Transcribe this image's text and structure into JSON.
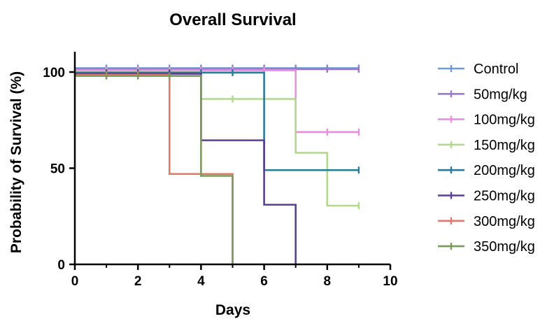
{
  "chart_data": {
    "type": "line",
    "subtype": "kaplan-meier",
    "title": "Overall Survival",
    "xlabel": "Days",
    "ylabel": "Probability of Survival (%)",
    "xlim": [
      0,
      10
    ],
    "ylim": [
      0,
      100
    ],
    "xticks": [
      0,
      2,
      4,
      6,
      8,
      10
    ],
    "yticks": [
      0,
      50,
      100
    ],
    "grid": false,
    "legend_position": "right",
    "censor_marks": true,
    "series": [
      {
        "name": "Control",
        "color": "#6e9bd8",
        "steps": [
          [
            0,
            100
          ],
          [
            9,
            100
          ]
        ],
        "censored": [
          [
            1,
            100
          ],
          [
            2,
            100
          ],
          [
            3,
            100
          ],
          [
            4,
            100
          ],
          [
            5,
            100
          ],
          [
            6,
            100
          ],
          [
            7,
            100
          ],
          [
            8,
            100
          ],
          [
            9,
            100
          ]
        ]
      },
      {
        "name": "50mg/kg",
        "color": "#9b79c8",
        "steps": [
          [
            0,
            100
          ],
          [
            9,
            100
          ]
        ],
        "censored": [
          [
            1,
            100
          ],
          [
            2,
            100
          ],
          [
            3,
            100
          ],
          [
            4,
            100
          ],
          [
            5,
            100
          ],
          [
            6,
            100
          ],
          [
            7,
            100
          ],
          [
            8,
            100
          ],
          [
            9,
            100
          ]
        ]
      },
      {
        "name": "100mg/kg",
        "color": "#e98fe0",
        "steps": [
          [
            0,
            100
          ],
          [
            7,
            100
          ],
          [
            7,
            68.8
          ],
          [
            9,
            68.8
          ]
        ],
        "censored": [
          [
            1,
            100
          ],
          [
            2,
            100
          ],
          [
            3,
            100
          ],
          [
            4,
            100
          ],
          [
            5,
            100
          ],
          [
            6,
            100
          ],
          [
            8,
            68.8
          ],
          [
            9,
            68.8
          ]
        ]
      },
      {
        "name": "150mg/kg",
        "color": "#b2d98a",
        "steps": [
          [
            0,
            100
          ],
          [
            4,
            100
          ],
          [
            4,
            86
          ],
          [
            7,
            86
          ],
          [
            7,
            58
          ],
          [
            8,
            58
          ],
          [
            8,
            30.5
          ],
          [
            9,
            30.5
          ]
        ],
        "censored": [
          [
            1,
            100
          ],
          [
            2,
            100
          ],
          [
            3,
            100
          ],
          [
            5,
            86
          ],
          [
            9,
            30.5
          ]
        ]
      },
      {
        "name": "200mg/kg",
        "color": "#2a7a9a",
        "steps": [
          [
            0,
            100
          ],
          [
            6,
            100
          ],
          [
            6,
            49
          ],
          [
            9,
            49
          ]
        ],
        "censored": [
          [
            1,
            100
          ],
          [
            2,
            100
          ],
          [
            3,
            100
          ],
          [
            4,
            100
          ],
          [
            5,
            100
          ],
          [
            9,
            49
          ]
        ]
      },
      {
        "name": "250mg/kg",
        "color": "#5a3f94",
        "steps": [
          [
            0,
            100
          ],
          [
            4,
            100
          ],
          [
            4,
            64.5
          ],
          [
            6,
            64.5
          ],
          [
            6,
            31
          ],
          [
            7,
            31
          ],
          [
            7,
            0
          ]
        ],
        "censored": [
          [
            1,
            100
          ],
          [
            2,
            100
          ],
          [
            3,
            100
          ]
        ]
      },
      {
        "name": "300mg/kg",
        "color": "#e17870",
        "steps": [
          [
            0,
            100
          ],
          [
            3,
            100
          ],
          [
            3,
            47
          ],
          [
            5,
            47
          ],
          [
            5,
            0
          ]
        ],
        "censored": [
          [
            1,
            100
          ],
          [
            2,
            100
          ]
        ]
      },
      {
        "name": "350mg/kg",
        "color": "#7a9a5a",
        "steps": [
          [
            0,
            100
          ],
          [
            4,
            100
          ],
          [
            4,
            46
          ],
          [
            5,
            46
          ],
          [
            5,
            0
          ]
        ],
        "censored": [
          [
            1,
            100
          ],
          [
            2,
            100
          ],
          [
            3,
            100
          ]
        ]
      }
    ]
  }
}
